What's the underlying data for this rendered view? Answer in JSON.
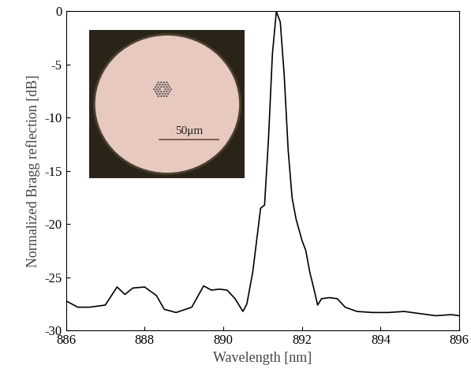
{
  "chart_data": {
    "type": "line",
    "x_label": "Wavelength [nm]",
    "y_label": "Normalized Bragg reflection [dB]",
    "annotations": [
      "50μm"
    ],
    "x": [
      886.0,
      886.3,
      886.6,
      887.0,
      887.3,
      887.5,
      887.7,
      888.0,
      888.3,
      888.5,
      888.8,
      889.2,
      889.5,
      889.7,
      889.9,
      890.1,
      890.3,
      890.5,
      890.6,
      890.75,
      890.9,
      890.95,
      891.05,
      891.15,
      891.25,
      891.35,
      891.45,
      891.55,
      891.65,
      891.75,
      891.85,
      892.0,
      892.1,
      892.2,
      892.3,
      892.4,
      892.5,
      892.7,
      892.9,
      893.1,
      893.4,
      893.8,
      894.2,
      894.6,
      895.0,
      895.4,
      895.8,
      896.0
    ],
    "values": [
      -27.2,
      -27.8,
      -27.8,
      -27.6,
      -25.9,
      -26.6,
      -26.0,
      -25.9,
      -26.7,
      -28.0,
      -28.3,
      -27.8,
      -25.8,
      -26.2,
      -26.1,
      -26.2,
      -27.0,
      -28.2,
      -27.5,
      -24.5,
      -20.0,
      -18.5,
      -18.2,
      -12.0,
      -4.0,
      0.0,
      -1.0,
      -6.0,
      -13.0,
      -17.5,
      -19.5,
      -21.5,
      -22.5,
      -24.5,
      -26.0,
      -27.6,
      -27.0,
      -26.9,
      -27.0,
      -27.8,
      -28.2,
      -28.3,
      -28.3,
      -28.2,
      -28.4,
      -28.6,
      -28.5,
      -28.6
    ],
    "color": "#000000",
    "xlim": [
      886,
      896
    ],
    "xticks": [
      886,
      888,
      890,
      892,
      894,
      896
    ],
    "ylim": [
      -30,
      0
    ],
    "yticks": [
      -30,
      -25,
      -20,
      -15,
      -10,
      -5,
      0
    ],
    "grid": false
  }
}
